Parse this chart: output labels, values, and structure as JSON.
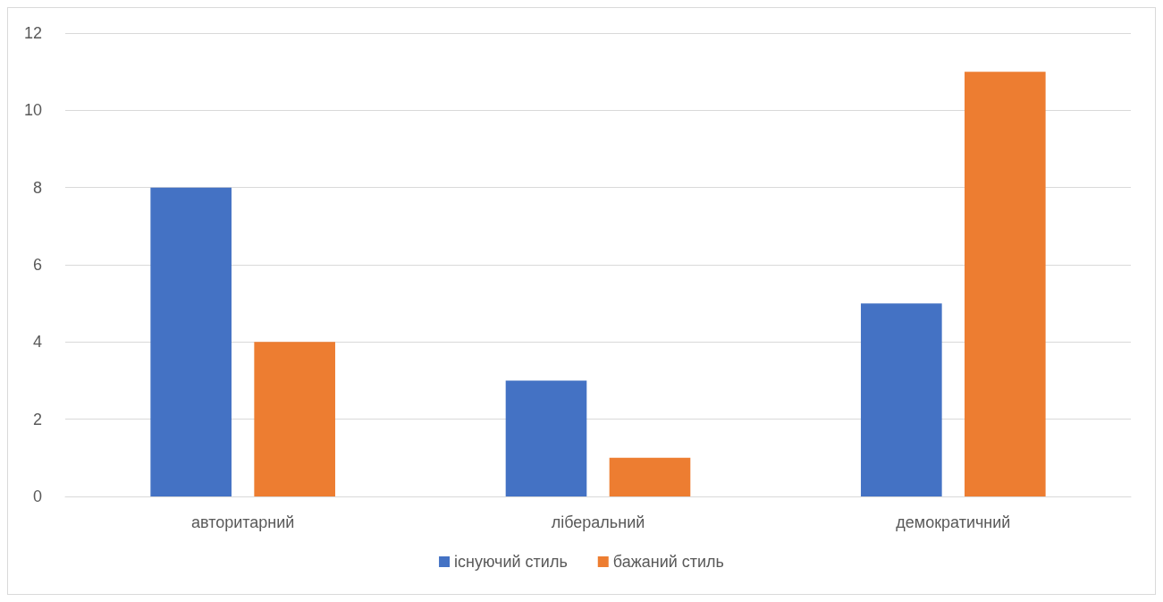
{
  "chart_data": {
    "type": "bar",
    "categories": [
      "авторитарний",
      "ліберальний",
      "демократичний"
    ],
    "series": [
      {
        "name": "існуючий стиль",
        "color": "#4472c4",
        "values": [
          8,
          3,
          5
        ]
      },
      {
        "name": "бажаний стиль",
        "color": "#ed7d31",
        "values": [
          4,
          1,
          11
        ]
      }
    ],
    "ylim": [
      0,
      12
    ],
    "yticks": [
      0,
      2,
      4,
      6,
      8,
      10,
      12
    ],
    "grid": "y",
    "legend": "bottom"
  }
}
